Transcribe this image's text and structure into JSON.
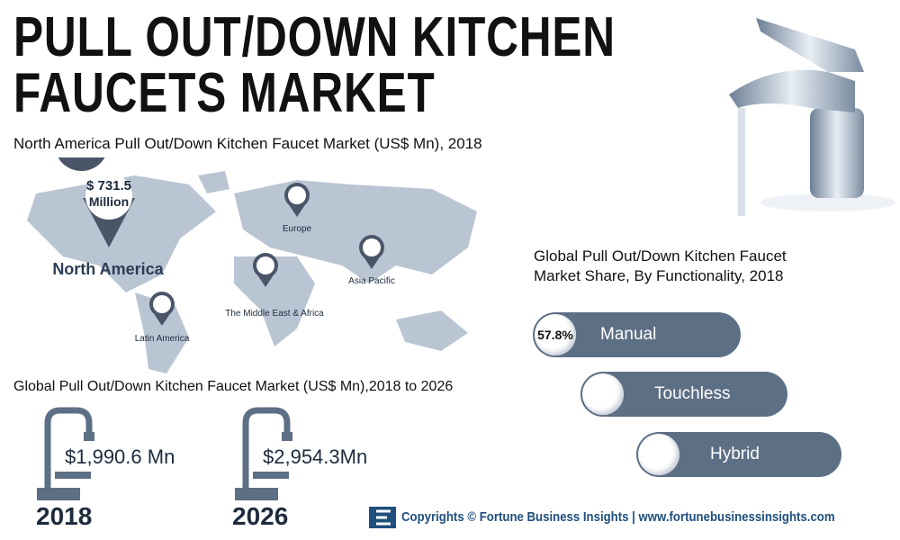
{
  "header": {
    "title_lines": [
      "PULL OUT/DOWN KITCHEN",
      "FAUCETS MARKET"
    ]
  },
  "map": {
    "title": "North America Pull Out/Down Kitchen Faucet Market (US$ Mn), 2018",
    "callout": {
      "value": "$ 731.5",
      "unit": "Million",
      "region": "North America"
    },
    "markers": [
      "Europe",
      "Asia Pacific",
      "The Middle East & Africa",
      "Latin America"
    ]
  },
  "share": {
    "title_lines": [
      "Global Pull Out/Down Kitchen Faucet",
      "Market Share, By Functionality, 2018"
    ],
    "items": [
      {
        "badge": "57.8%",
        "label": "Manual"
      },
      {
        "label": "Touchless"
      },
      {
        "label": "Hybrid"
      }
    ]
  },
  "growth": {
    "title": "Global Pull Out/Down Kitchen Faucet Market (US$ Mn),2018 to 2026",
    "years": [
      {
        "year": "2018",
        "value": "$1,990.6 Mn"
      },
      {
        "year": "2026",
        "value": "$2,954.3Mn"
      }
    ]
  },
  "footer": {
    "text": "Copyrights © Fortune Business Insights | www.fortunebusinessinsights.com"
  }
}
